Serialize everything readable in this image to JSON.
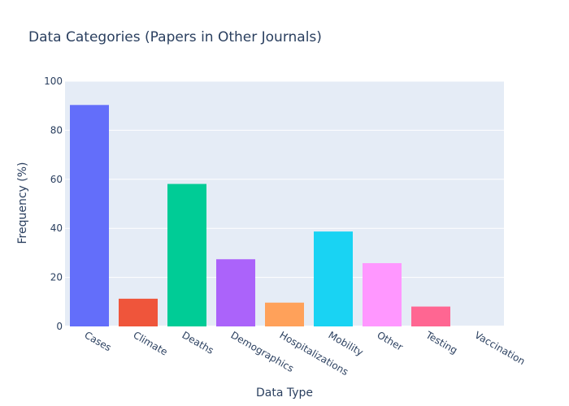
{
  "chart_data": {
    "type": "bar",
    "title": "Data Categories (Papers in Other Journals)",
    "xlabel": "Data Type",
    "ylabel": "Frequency (%)",
    "ylim": [
      0,
      100
    ],
    "yticks": [
      "0",
      "20",
      "40",
      "60",
      "80",
      "100"
    ],
    "grid": true,
    "categories": [
      "Cases",
      "Climate",
      "Deaths",
      "Demographics",
      "Hospitalizations",
      "Mobility",
      "Other",
      "Testing",
      "Vaccination"
    ],
    "values": [
      90.3,
      11.3,
      58.1,
      27.4,
      9.7,
      38.7,
      25.8,
      8.1,
      0
    ],
    "colors": [
      "#636efa",
      "#ef553b",
      "#00cc96",
      "#ab63fa",
      "#ffa15a",
      "#19d3f3",
      "#ff97ff",
      "#ff6692",
      "#b6e880"
    ],
    "background_color": "#e5ecf6",
    "gridline_color": "#ffffff"
  }
}
